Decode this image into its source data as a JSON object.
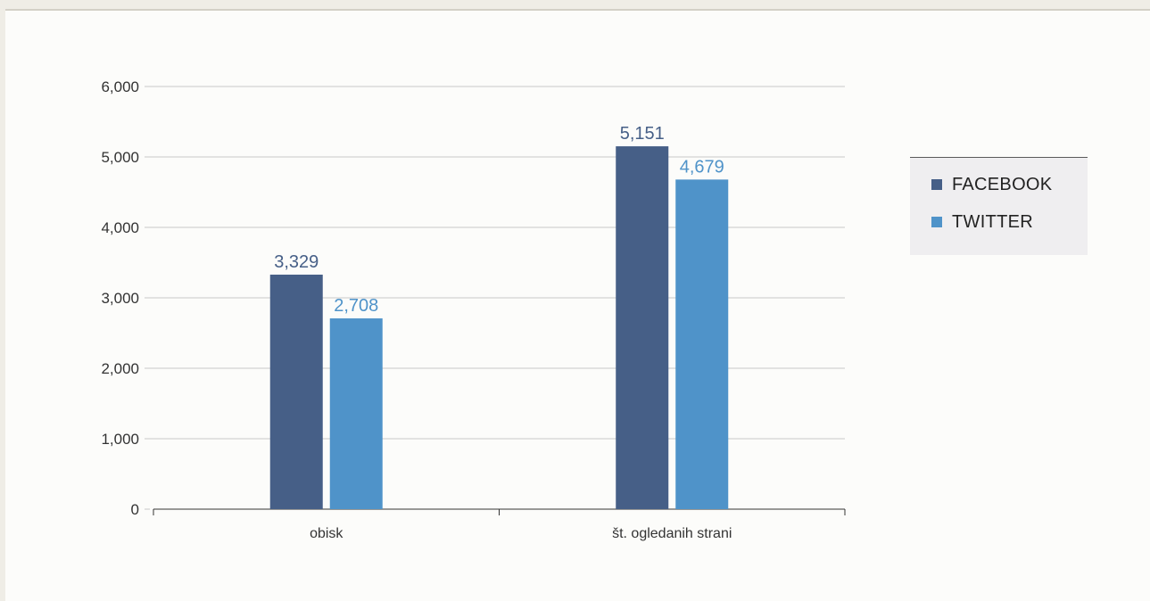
{
  "chart_data": {
    "type": "bar",
    "categories": [
      "obisk",
      "št. ogledanih strani"
    ],
    "series": [
      {
        "name": "FACEBOOK",
        "values": [
          3329,
          5151
        ],
        "labels": [
          "3,329",
          "5,151"
        ],
        "color": "#465f87",
        "label_color": "#465f87"
      },
      {
        "name": "TWITTER",
        "values": [
          2708,
          4679
        ],
        "labels": [
          "2,708",
          "4,679"
        ],
        "color": "#4f93c9",
        "label_color": "#4f93c9"
      }
    ],
    "ylim": [
      0,
      6000
    ],
    "yticks": [
      0,
      1000,
      2000,
      3000,
      4000,
      5000,
      6000
    ],
    "ytick_labels": [
      "0",
      "1,000",
      "2,000",
      "3,000",
      "4,000",
      "5,000",
      "6,000"
    ],
    "xlabel": "",
    "ylabel": "",
    "grid": true,
    "legend_position": "right"
  }
}
